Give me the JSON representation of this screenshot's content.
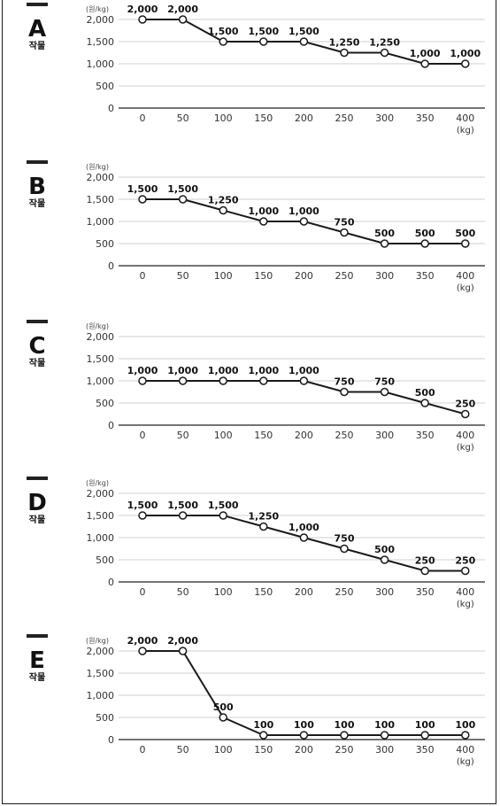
{
  "colors": {
    "line": "#1a1a1a",
    "grid": "#cfcfcf",
    "axis": "#222222",
    "marker_fill": "#ffffff"
  },
  "crop_suffix": "작물",
  "chart_data": [
    {
      "type": "line",
      "panel_letter": "A",
      "y_unit": "(원/kg)",
      "x_unit": "(kg)",
      "x": [
        0,
        50,
        100,
        150,
        200,
        250,
        300,
        350,
        400
      ],
      "y": [
        2000,
        2000,
        1500,
        1500,
        1500,
        1250,
        1250,
        1000,
        1000
      ],
      "data_labels": [
        "2,000",
        "2,000",
        "1,500",
        "1,500",
        "1,500",
        "1,250",
        "1,250",
        "1,000",
        "1,000"
      ],
      "yticks": [
        0,
        500,
        1000,
        1500,
        2000
      ],
      "ytick_labels": [
        "0",
        "500",
        "1,000",
        "1,500",
        "2,000"
      ],
      "xtick_labels": [
        "0",
        "50",
        "100",
        "150",
        "200",
        "250",
        "300",
        "350",
        "400"
      ],
      "ylim": [
        0,
        2000
      ],
      "grid": true
    },
    {
      "type": "line",
      "panel_letter": "B",
      "y_unit": "(원/kg)",
      "x_unit": "(kg)",
      "x": [
        0,
        50,
        100,
        150,
        200,
        250,
        300,
        350,
        400
      ],
      "y": [
        1500,
        1500,
        1250,
        1000,
        1000,
        750,
        500,
        500,
        500
      ],
      "data_labels": [
        "1,500",
        "1,500",
        "1,250",
        "1,000",
        "1,000",
        "750",
        "500",
        "500",
        "500"
      ],
      "yticks": [
        0,
        500,
        1000,
        1500,
        2000
      ],
      "ytick_labels": [
        "0",
        "500",
        "1,000",
        "1,500",
        "2,000"
      ],
      "xtick_labels": [
        "0",
        "50",
        "100",
        "150",
        "200",
        "250",
        "300",
        "350",
        "400"
      ],
      "ylim": [
        0,
        2000
      ],
      "grid": true
    },
    {
      "type": "line",
      "panel_letter": "C",
      "y_unit": "(원/kg)",
      "x_unit": "(kg)",
      "x": [
        0,
        50,
        100,
        150,
        200,
        250,
        300,
        350,
        400
      ],
      "y": [
        1000,
        1000,
        1000,
        1000,
        1000,
        750,
        750,
        500,
        250
      ],
      "data_labels": [
        "1,000",
        "1,000",
        "1,000",
        "1,000",
        "1,000",
        "750",
        "750",
        "500",
        "250"
      ],
      "yticks": [
        0,
        500,
        1000,
        1500,
        2000
      ],
      "ytick_labels": [
        "0",
        "500",
        "1,000",
        "1,500",
        "2,000"
      ],
      "xtick_labels": [
        "0",
        "50",
        "100",
        "150",
        "200",
        "250",
        "300",
        "350",
        "400"
      ],
      "ylim": [
        0,
        2000
      ],
      "grid": true
    },
    {
      "type": "line",
      "panel_letter": "D",
      "y_unit": "(원/kg)",
      "x_unit": "(kg)",
      "x": [
        0,
        50,
        100,
        150,
        200,
        250,
        300,
        350,
        400
      ],
      "y": [
        1500,
        1500,
        1500,
        1250,
        1000,
        750,
        500,
        250,
        250
      ],
      "data_labels": [
        "1,500",
        "1,500",
        "1,500",
        "1,250",
        "1,000",
        "750",
        "500",
        "250",
        "250"
      ],
      "yticks": [
        0,
        500,
        1000,
        1500,
        2000
      ],
      "ytick_labels": [
        "0",
        "500",
        "1,000",
        "1,500",
        "2,000"
      ],
      "xtick_labels": [
        "0",
        "50",
        "100",
        "150",
        "200",
        "250",
        "300",
        "350",
        "400"
      ],
      "ylim": [
        0,
        2000
      ],
      "grid": true
    },
    {
      "type": "line",
      "panel_letter": "E",
      "y_unit": "(원/kg)",
      "x_unit": "(kg)",
      "x": [
        0,
        50,
        100,
        150,
        200,
        250,
        300,
        350,
        400
      ],
      "y": [
        2000,
        2000,
        500,
        100,
        100,
        100,
        100,
        100,
        100
      ],
      "data_labels": [
        "2,000",
        "2,000",
        "500",
        "100",
        "100",
        "100",
        "100",
        "100",
        "100"
      ],
      "yticks": [
        0,
        500,
        1000,
        1500,
        2000
      ],
      "ytick_labels": [
        "0",
        "500",
        "1,000",
        "1,500",
        "2,000"
      ],
      "xtick_labels": [
        "0",
        "50",
        "100",
        "150",
        "200",
        "250",
        "300",
        "350",
        "400"
      ],
      "ylim": [
        0,
        2000
      ],
      "grid": true
    }
  ]
}
